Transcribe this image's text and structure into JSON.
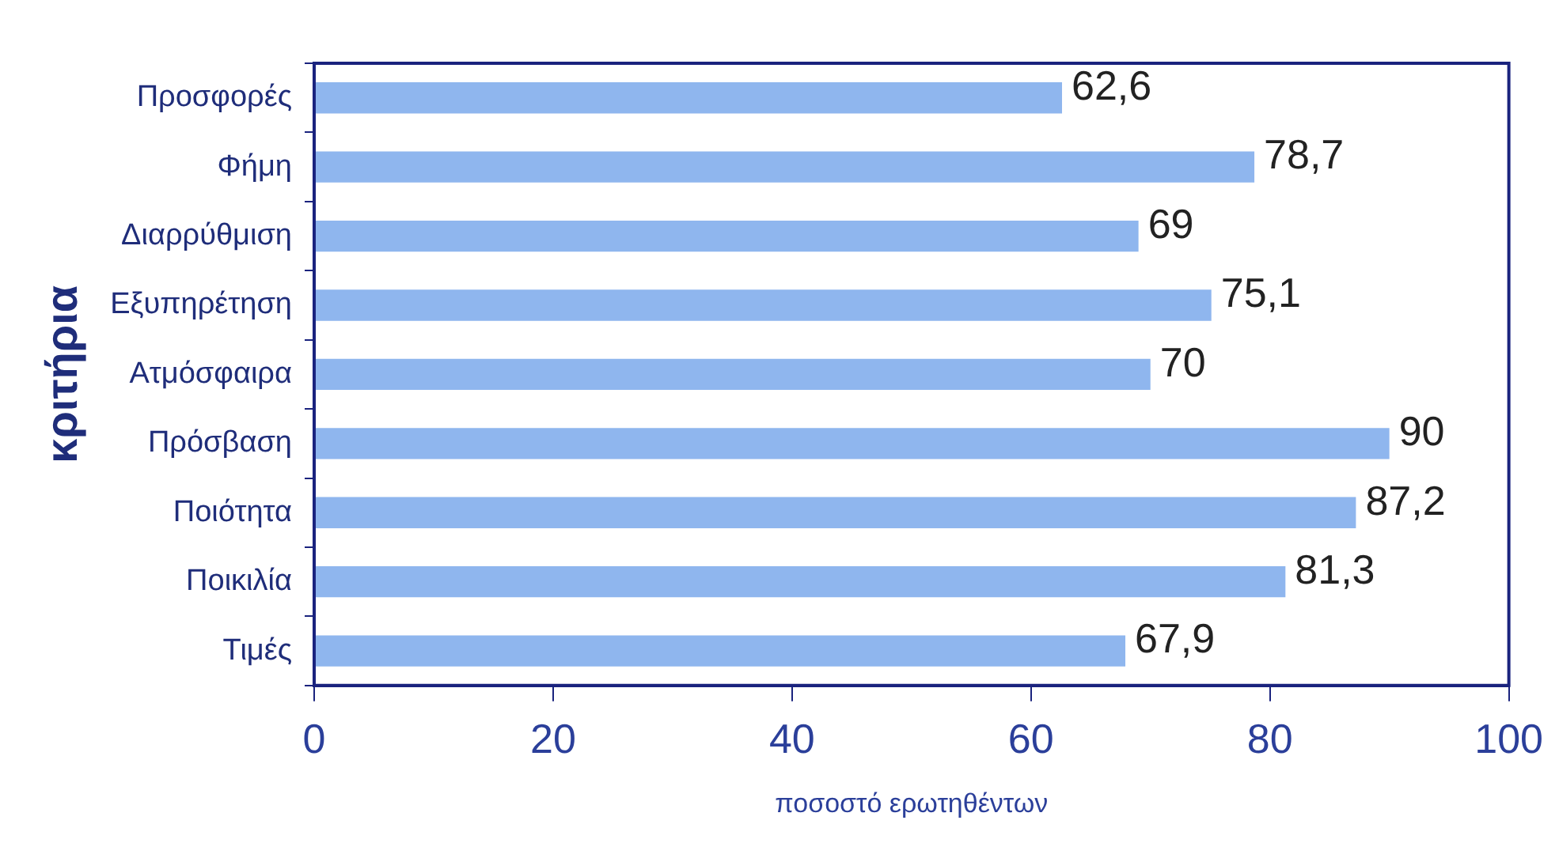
{
  "chart_data": {
    "type": "bar",
    "orientation": "horizontal",
    "xlabel": "ποσοστό ερωτηθέντων",
    "ylabel": "κριτήρια",
    "categories": [
      "Προσφορές",
      "Φήμη",
      "Διαρρύθμιση",
      "Εξυπηρέτηση",
      "Ατμόσφαιρα",
      "Πρόσβαση",
      "Ποιότητα",
      "Ποικιλία",
      "Τιμές"
    ],
    "values": [
      62.6,
      78.7,
      69,
      75.1,
      70,
      90,
      87.2,
      81.3,
      67.9
    ],
    "value_labels": [
      "62,6",
      "78,7",
      "69",
      "75,1",
      "70",
      "90",
      "87,2",
      "81,3",
      "67,9"
    ],
    "color": "#8fb6ee",
    "xlim": [
      0,
      100
    ],
    "xticks": [
      0,
      20,
      40,
      60,
      80,
      100
    ],
    "grid": false,
    "legend": false
  }
}
